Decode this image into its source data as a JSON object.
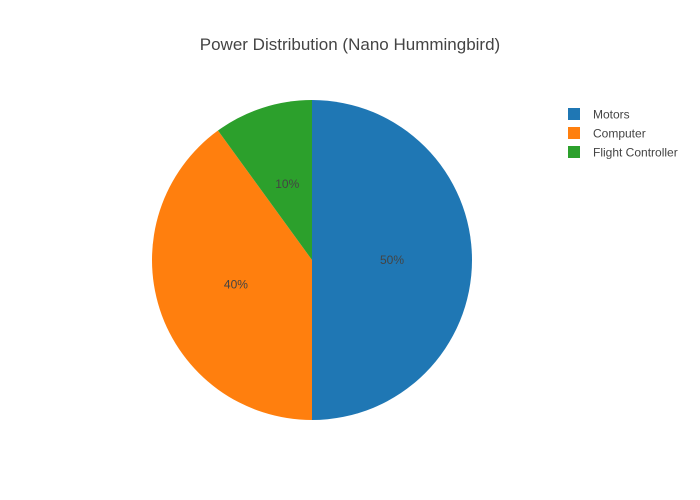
{
  "chart_data": {
    "type": "pie",
    "title": "Power Distribution (Nano Hummingbird)",
    "labels": [
      "Motors",
      "Computer",
      "Flight Controller"
    ],
    "values": [
      50,
      40,
      10
    ],
    "percent_labels": [
      "50%",
      "40%",
      "10%"
    ],
    "colors": [
      "#1f77b4",
      "#ff7f0e",
      "#2ca02c"
    ],
    "direction": "clockwise",
    "rotation_start": "top",
    "legend": {
      "position": "top-right",
      "items": [
        "Motors",
        "Computer",
        "Flight Controller"
      ]
    }
  }
}
